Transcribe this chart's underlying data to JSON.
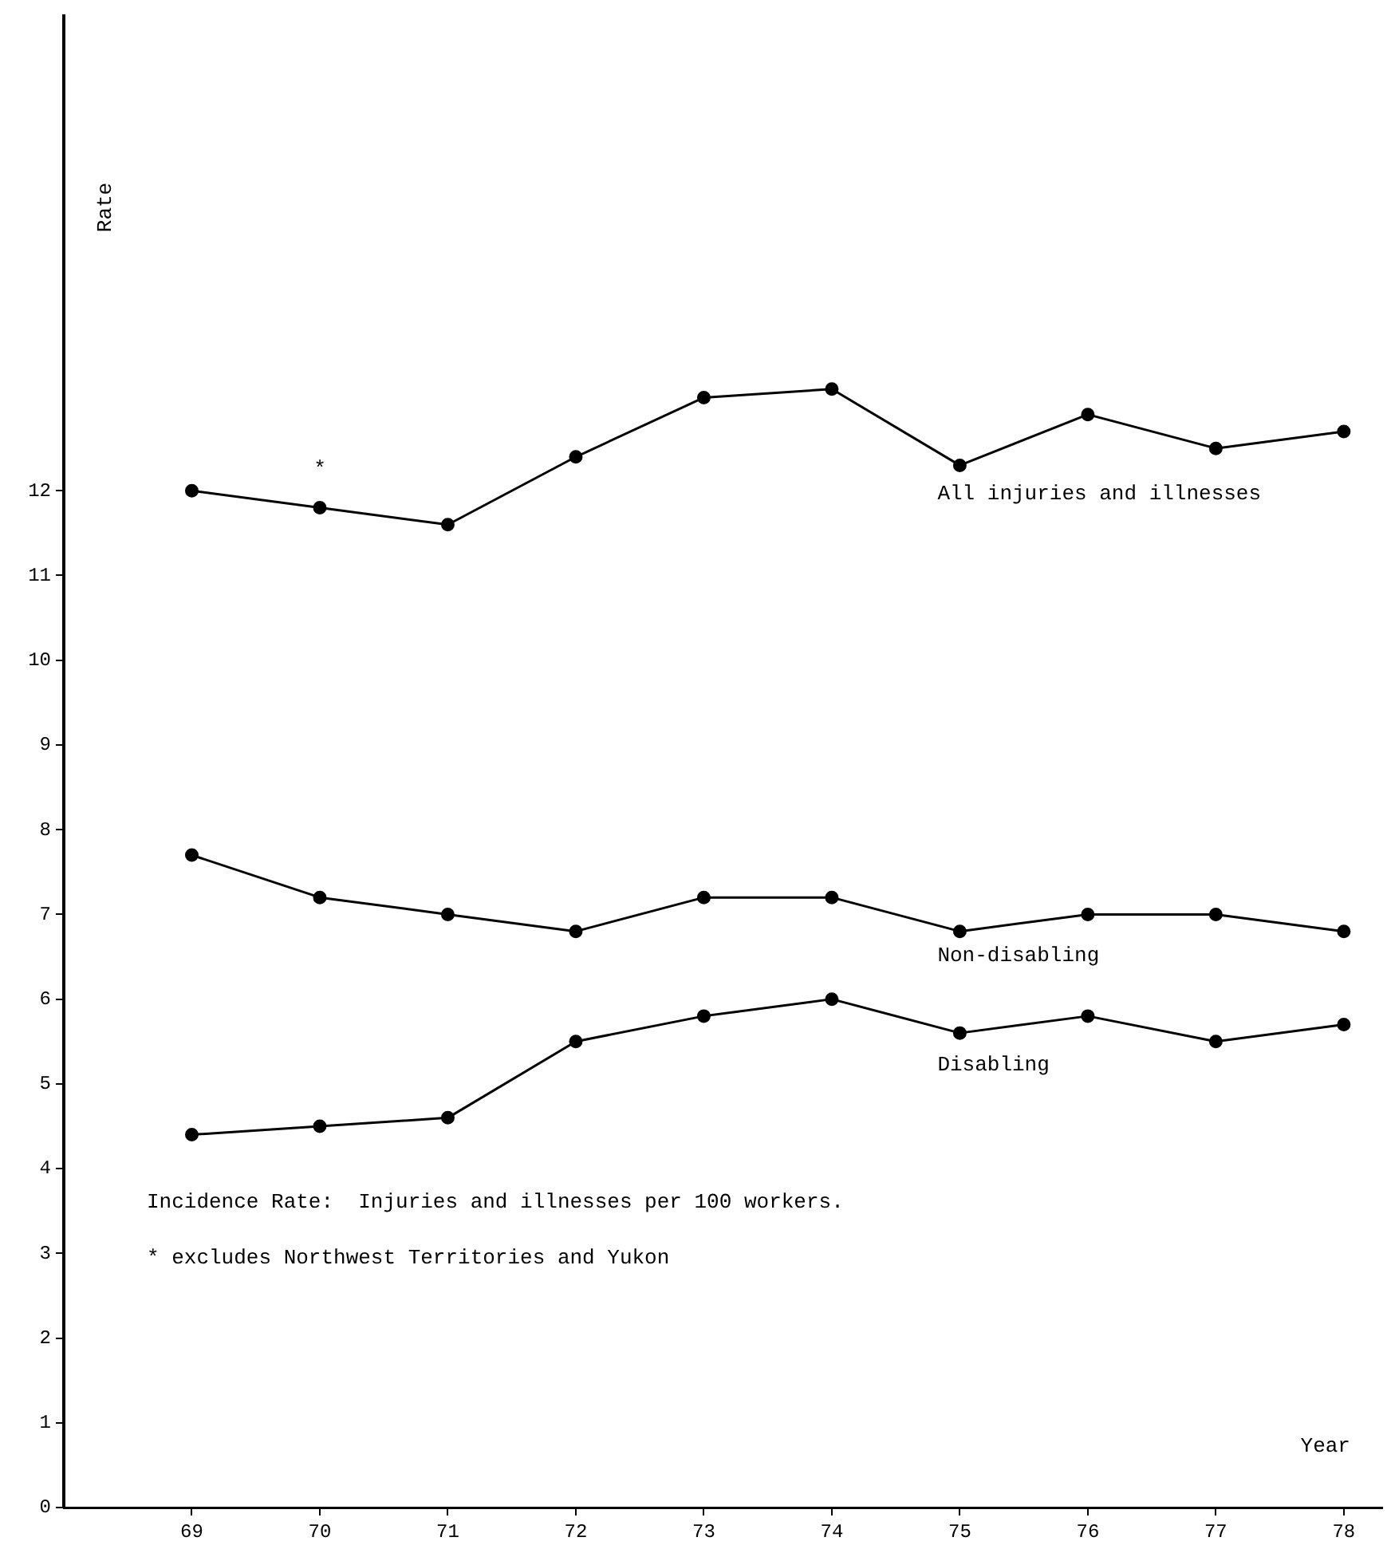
{
  "chart_data": {
    "type": "line",
    "xlabel": "Year",
    "ylabel": "Rate",
    "x": [
      69,
      70,
      71,
      72,
      73,
      74,
      75,
      76,
      77,
      78
    ],
    "xlim": [
      68,
      78.3
    ],
    "xticks": [
      69,
      70,
      71,
      72,
      73,
      74,
      75,
      76,
      77,
      78
    ],
    "ylim": [
      0,
      17.6
    ],
    "yticks": [
      0,
      1,
      2,
      3,
      4,
      5,
      6,
      7,
      8,
      9,
      10,
      11,
      12
    ],
    "series": [
      {
        "name": "All injuries and illnesses",
        "color": "#000000",
        "values": [
          12.0,
          11.8,
          11.6,
          12.4,
          13.1,
          13.2,
          12.3,
          12.9,
          12.5,
          12.7
        ]
      },
      {
        "name": "Non-disabling",
        "color": "#000000",
        "values": [
          7.7,
          7.2,
          7.0,
          6.8,
          7.2,
          7.2,
          6.8,
          7.0,
          7.0,
          6.8
        ]
      },
      {
        "name": "Disabling",
        "color": "#000000",
        "values": [
          4.4,
          4.5,
          4.6,
          5.5,
          5.8,
          6.0,
          5.6,
          5.8,
          5.5,
          5.7
        ]
      }
    ],
    "annotations": [
      "*",
      "Incidence Rate:  Injuries and illnesses per 100 workers.",
      "* excludes Northwest Territories and Yukon"
    ],
    "grid": false,
    "legend": false,
    "marker": "circle",
    "line_style": "solid"
  }
}
